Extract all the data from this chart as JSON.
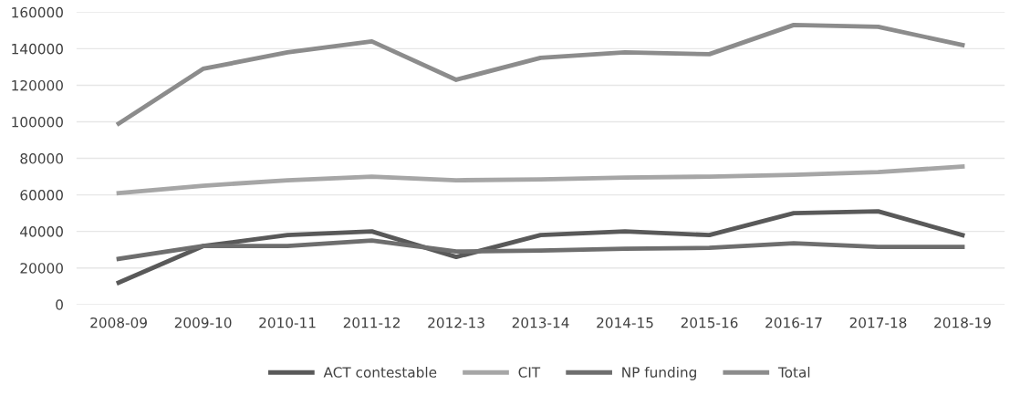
{
  "chart_data": {
    "type": "line",
    "categories": [
      "2008-09",
      "2009-10",
      "2010-11",
      "2011-12",
      "2012-13",
      "2013-14",
      "2014-15",
      "2015-16",
      "2016-17",
      "2017-18",
      "2018-19"
    ],
    "series": [
      {
        "name": "ACT contestable",
        "color": "#595959",
        "values": [
          12000,
          32000,
          38000,
          40000,
          26000,
          38000,
          40000,
          38000,
          50000,
          51000,
          38000
        ]
      },
      {
        "name": "CIT",
        "color": "#a6a6a6",
        "values": [
          61000,
          65000,
          68000,
          70000,
          68000,
          68500,
          69500,
          70000,
          71000,
          72500,
          75500
        ]
      },
      {
        "name": "NP funding",
        "color": "#6e6e6e",
        "values": [
          25000,
          32000,
          32000,
          35000,
          29000,
          29500,
          30500,
          31000,
          33500,
          31500,
          31500
        ]
      },
      {
        "name": "Total",
        "color": "#8c8c8c",
        "values": [
          99000,
          129000,
          138000,
          144000,
          123000,
          135000,
          138000,
          137000,
          153000,
          152000,
          142000
        ]
      }
    ],
    "ylim": [
      0,
      160000
    ],
    "yticks": [
      0,
      20000,
      40000,
      60000,
      80000,
      100000,
      120000,
      140000,
      160000
    ],
    "grid": "y",
    "legend": "bottom",
    "marker": "none",
    "line_style": "solid"
  }
}
